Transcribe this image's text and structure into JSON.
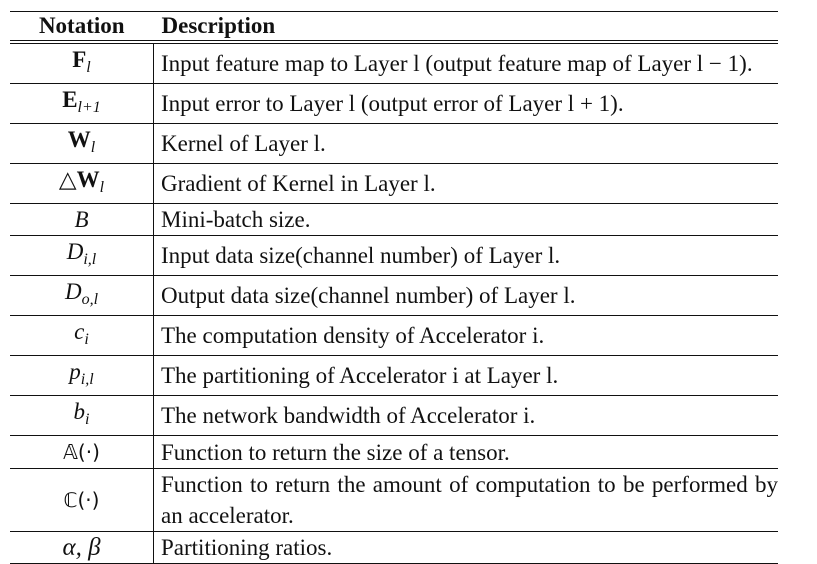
{
  "header": {
    "notation": "Notation",
    "description": "Description"
  },
  "rows": [
    {
      "sym_main": "F",
      "sym_sub": "l",
      "desc": "Input feature map to Layer l (output feature map of Layer l − 1)."
    },
    {
      "sym_main": "E",
      "sym_sub": "l+1",
      "desc": "Input error to Layer l (output error of Layer l + 1)."
    },
    {
      "sym_main": "W",
      "sym_sub": "l",
      "desc": "Kernel of Layer l."
    },
    {
      "sym_prefix": "△",
      "sym_main": "W",
      "sym_sub": "l",
      "desc": "Gradient of Kernel in Layer l."
    },
    {
      "sym_main": "B",
      "desc": "Mini-batch size."
    },
    {
      "sym_main": "D",
      "sym_sub": "i,l",
      "desc": "Input data size(channel number) of Layer l."
    },
    {
      "sym_main": "D",
      "sym_sub": "o,l",
      "desc": "Output data size(channel number) of Layer l."
    },
    {
      "sym_main": "c",
      "sym_sub": "i",
      "desc": "The computation density of Accelerator i."
    },
    {
      "sym_main": "p",
      "sym_sub": "i,l",
      "desc": "The partitioning of Accelerator i at Layer l."
    },
    {
      "sym_main": "b",
      "sym_sub": "i",
      "desc": "The network bandwidth of Accelerator i."
    },
    {
      "sym_main": "𝔸(·)",
      "desc": "Function to return the size of a tensor."
    },
    {
      "sym_main": "ℂ(·)",
      "desc": "Function to return the amount of computation to be performed by an accelerator."
    },
    {
      "sym_main": "α, β",
      "desc": "Partitioning ratios."
    }
  ]
}
